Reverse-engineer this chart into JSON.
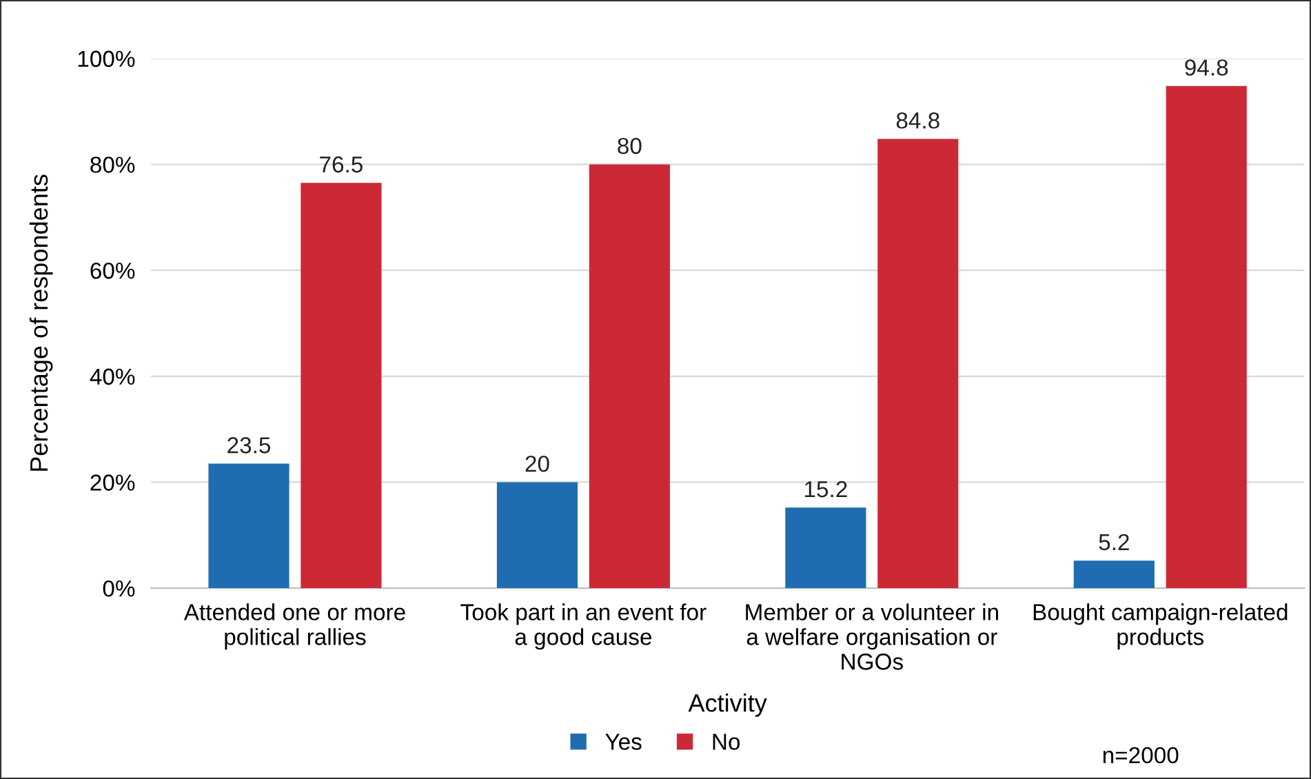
{
  "chart_data": {
    "type": "bar",
    "xlabel": "Activity",
    "ylabel": "Percentage of respondents",
    "categories": [
      "Attended one or more\npolitical rallies",
      "Took part in an event for\na good cause",
      "Member or a volunteer in\na welfare organisation or\nNGOs",
      "Bought campaign-related\nproducts"
    ],
    "series": [
      {
        "name": "Yes",
        "color": "#1f6cb0",
        "values": [
          23.5,
          20,
          15.2,
          5.2
        ]
      },
      {
        "name": "No",
        "color": "#cc2936",
        "values": [
          76.5,
          80,
          84.8,
          94.8
        ]
      }
    ],
    "ylim": [
      0,
      100
    ],
    "yticks": [
      {
        "value": 0,
        "label": "0%"
      },
      {
        "value": 20,
        "label": "20%"
      },
      {
        "value": 40,
        "label": "40%"
      },
      {
        "value": 60,
        "label": "60%"
      },
      {
        "value": 80,
        "label": "80%"
      },
      {
        "value": 100,
        "label": "100%"
      }
    ],
    "grid": "y",
    "legend": "bottom",
    "data_labels": true,
    "annotations": [
      "n=2000"
    ]
  }
}
